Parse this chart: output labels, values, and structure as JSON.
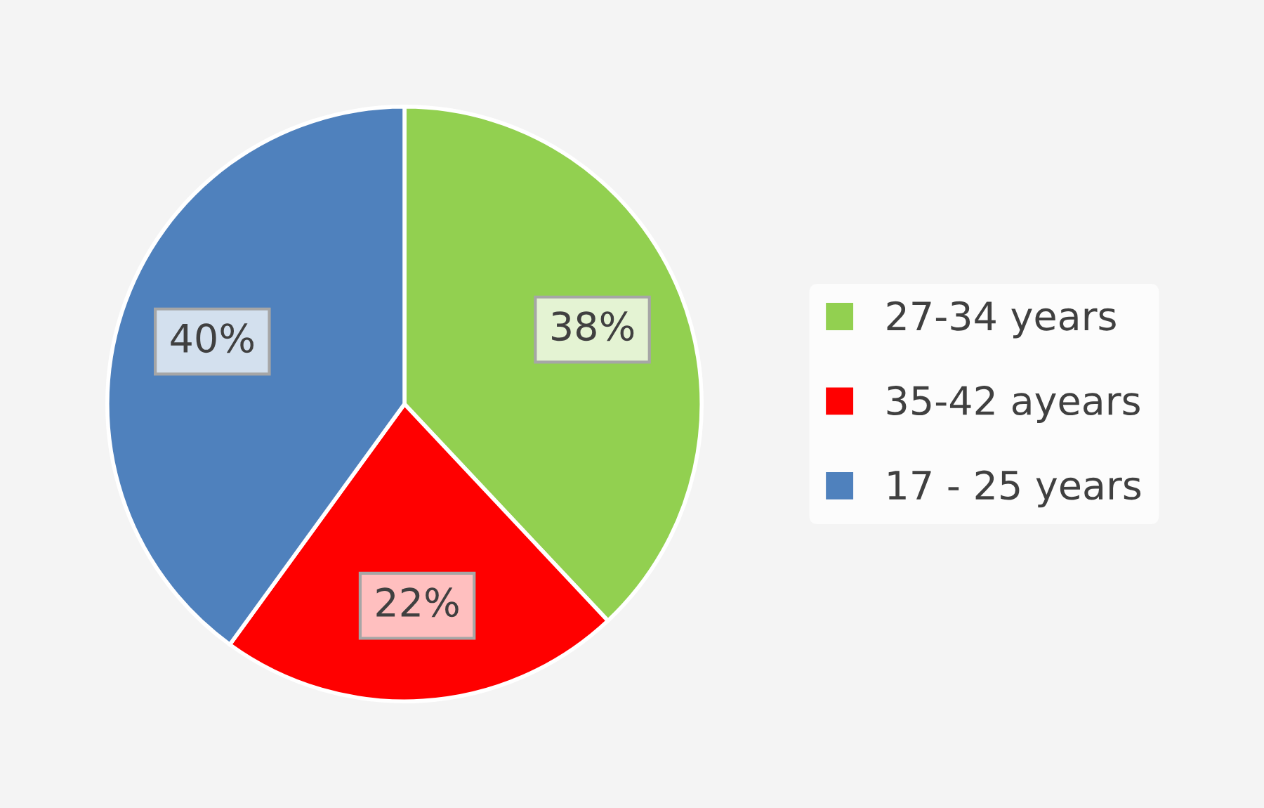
{
  "chart_data": {
    "type": "pie",
    "categories": [
      "27-34 years",
      "35-42 ayears",
      "17 - 25 years"
    ],
    "values": [
      38,
      22,
      40
    ],
    "colors": [
      "#92d050",
      "#ff0000",
      "#4f81bd"
    ],
    "value_labels": [
      "38%",
      "22%",
      "40%"
    ],
    "legend": "right"
  }
}
